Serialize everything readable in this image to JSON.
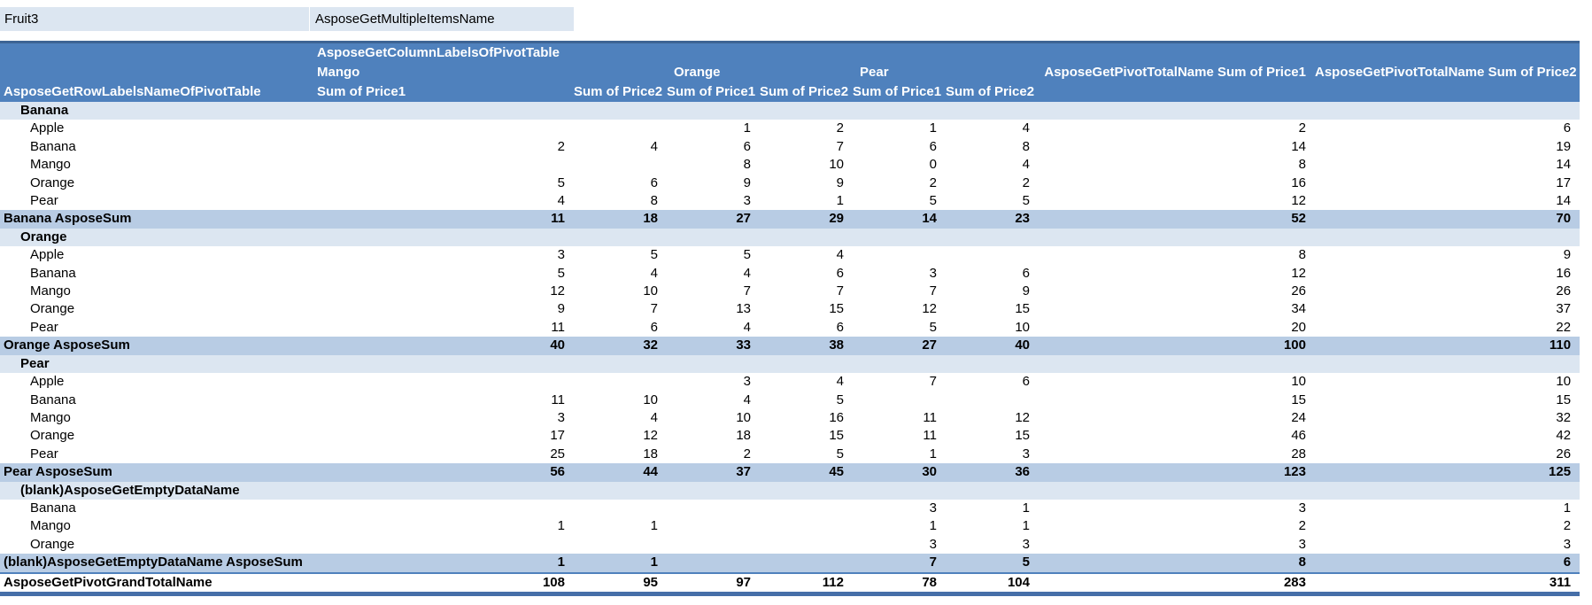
{
  "filter": {
    "field": "Fruit3",
    "value": "AsposeGetMultipleItemsName"
  },
  "pivot": {
    "header": {
      "column_labels_title": "AsposeGetColumnLabelsOfPivotTable",
      "row_labels_title": "AsposeGetRowLabelsNameOfPivotTable",
      "group_labels": [
        "Mango",
        "Orange",
        "Pear"
      ],
      "value_headers": [
        "Sum of Price1",
        "Sum of Price2",
        "Sum of Price1",
        "Sum of Price2",
        "Sum of Price1",
        "Sum of Price2"
      ],
      "grand_total_headers": [
        "AsposeGetPivotTotalName Sum of Price1",
        "AsposeGetPivotTotalName Sum of Price2"
      ]
    },
    "rows": [
      {
        "type": "group",
        "label": "Banana",
        "values": [
          "",
          "",
          "",
          "",
          "",
          "",
          "",
          ""
        ]
      },
      {
        "type": "item",
        "label": "Apple",
        "values": [
          "",
          "",
          "1",
          "2",
          "1",
          "4",
          "2",
          "6"
        ]
      },
      {
        "type": "item",
        "label": "Banana",
        "values": [
          "2",
          "4",
          "6",
          "7",
          "6",
          "8",
          "14",
          "19"
        ]
      },
      {
        "type": "item",
        "label": "Mango",
        "values": [
          "",
          "",
          "8",
          "10",
          "0",
          "4",
          "8",
          "14"
        ]
      },
      {
        "type": "item",
        "label": "Orange",
        "values": [
          "5",
          "6",
          "9",
          "9",
          "2",
          "2",
          "16",
          "17"
        ]
      },
      {
        "type": "item",
        "label": "Pear",
        "values": [
          "4",
          "8",
          "3",
          "1",
          "5",
          "5",
          "12",
          "14"
        ]
      },
      {
        "type": "subtotal",
        "label": "Banana AsposeSum",
        "values": [
          "11",
          "18",
          "27",
          "29",
          "14",
          "23",
          "52",
          "70"
        ]
      },
      {
        "type": "group",
        "label": "Orange",
        "values": [
          "",
          "",
          "",
          "",
          "",
          "",
          "",
          ""
        ]
      },
      {
        "type": "item",
        "label": "Apple",
        "values": [
          "3",
          "5",
          "5",
          "4",
          "",
          "",
          "8",
          "9"
        ]
      },
      {
        "type": "item",
        "label": "Banana",
        "values": [
          "5",
          "4",
          "4",
          "6",
          "3",
          "6",
          "12",
          "16"
        ]
      },
      {
        "type": "item",
        "label": "Mango",
        "values": [
          "12",
          "10",
          "7",
          "7",
          "7",
          "9",
          "26",
          "26"
        ]
      },
      {
        "type": "item",
        "label": "Orange",
        "values": [
          "9",
          "7",
          "13",
          "15",
          "12",
          "15",
          "34",
          "37"
        ]
      },
      {
        "type": "item",
        "label": "Pear",
        "values": [
          "11",
          "6",
          "4",
          "6",
          "5",
          "10",
          "20",
          "22"
        ]
      },
      {
        "type": "subtotal",
        "label": "Orange AsposeSum",
        "values": [
          "40",
          "32",
          "33",
          "38",
          "27",
          "40",
          "100",
          "110"
        ]
      },
      {
        "type": "group",
        "label": "Pear",
        "values": [
          "",
          "",
          "",
          "",
          "",
          "",
          "",
          ""
        ]
      },
      {
        "type": "item",
        "label": "Apple",
        "values": [
          "",
          "",
          "3",
          "4",
          "7",
          "6",
          "10",
          "10"
        ]
      },
      {
        "type": "item",
        "label": "Banana",
        "values": [
          "11",
          "10",
          "4",
          "5",
          "",
          "",
          "15",
          "15"
        ]
      },
      {
        "type": "item",
        "label": "Mango",
        "values": [
          "3",
          "4",
          "10",
          "16",
          "11",
          "12",
          "24",
          "32"
        ]
      },
      {
        "type": "item",
        "label": "Orange",
        "values": [
          "17",
          "12",
          "18",
          "15",
          "11",
          "15",
          "46",
          "42"
        ]
      },
      {
        "type": "item",
        "label": "Pear",
        "values": [
          "25",
          "18",
          "2",
          "5",
          "1",
          "3",
          "28",
          "26"
        ]
      },
      {
        "type": "subtotal",
        "label": "Pear AsposeSum",
        "values": [
          "56",
          "44",
          "37",
          "45",
          "30",
          "36",
          "123",
          "125"
        ]
      },
      {
        "type": "group",
        "label": "(blank)AsposeGetEmptyDataName",
        "values": [
          "",
          "",
          "",
          "",
          "",
          "",
          "",
          ""
        ]
      },
      {
        "type": "item",
        "label": "Banana",
        "values": [
          "",
          "",
          "",
          "",
          "3",
          "1",
          "3",
          "1"
        ]
      },
      {
        "type": "item",
        "label": "Mango",
        "values": [
          "1",
          "1",
          "",
          "",
          "1",
          "1",
          "2",
          "2"
        ]
      },
      {
        "type": "item",
        "label": "Orange",
        "values": [
          "",
          "",
          "",
          "",
          "3",
          "3",
          "3",
          "3"
        ]
      },
      {
        "type": "subtotal",
        "label": "(blank)AsposeGetEmptyDataName AsposeSum",
        "values": [
          "1",
          "1",
          "",
          "",
          "7",
          "5",
          "8",
          "6"
        ]
      },
      {
        "type": "grand",
        "label": "AsposeGetPivotGrandTotalName",
        "values": [
          "108",
          "95",
          "97",
          "112",
          "78",
          "104",
          "283",
          "311"
        ]
      }
    ]
  },
  "colors": {
    "header_blue": "#4F81BD",
    "header_top_stripe": "#3D6494",
    "group_band_light": "#DCE6F1",
    "subtotal_band_medium": "#B8CCE4",
    "grand_total_underline": "#466FA8",
    "header_text": "#FFFFFF",
    "body_text": "#000000"
  }
}
